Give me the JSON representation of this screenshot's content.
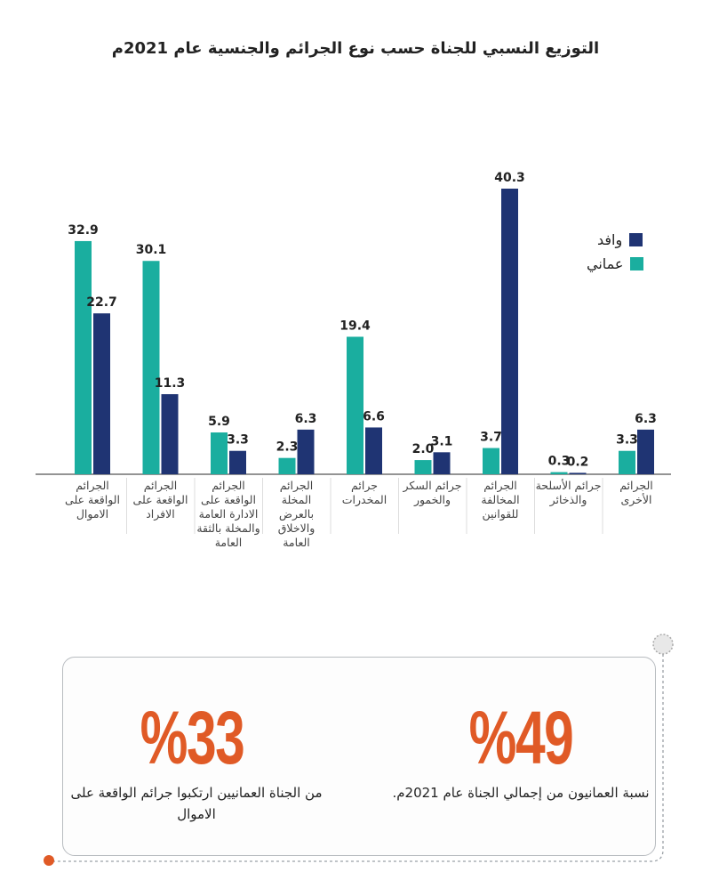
{
  "chart_data": {
    "type": "bar",
    "title": "التوزيع النسبي للجناة حسب نوع الجرائم والجنسية  عام 2021م",
    "categories": [
      "الجرائم الواقعة على الاموال",
      "الجرائم الواقعة على الافراد",
      "الجرائم الواقعة على الادارة العامة والمخلة بالثقة العامة",
      "الجرائم المخلة بالعرض والاخلاق العامة",
      "جرائم المخدرات",
      "جرائم السكر والخمور",
      "الجرائم المخالفة للقوانين",
      "جرائم الأسلحة والذخائر",
      "الجرائم الأخرى"
    ],
    "series": [
      {
        "name": "عماني",
        "color": "#1aae9f",
        "values": [
          32.9,
          30.1,
          5.9,
          2.3,
          19.4,
          2.0,
          3.7,
          0.3,
          3.3
        ]
      },
      {
        "name": "وافد",
        "color": "#1f3473",
        "values": [
          22.7,
          11.3,
          3.3,
          6.3,
          6.6,
          3.1,
          40.3,
          0.2,
          6.3
        ]
      }
    ],
    "ylim": [
      0,
      40.3
    ],
    "grid": false,
    "legend": "right",
    "data_labels": true
  },
  "stats": [
    {
      "value": "%49",
      "caption": "نسبة العمانيون من إجمالي الجناة عام 2021م."
    },
    {
      "value": "%33",
      "caption": "من الجناة العمانيين ارتكبوا جرائم الواقعة على الاموال"
    }
  ],
  "colors": {
    "accent": "#e05a26",
    "border": "#b8bcc0"
  }
}
